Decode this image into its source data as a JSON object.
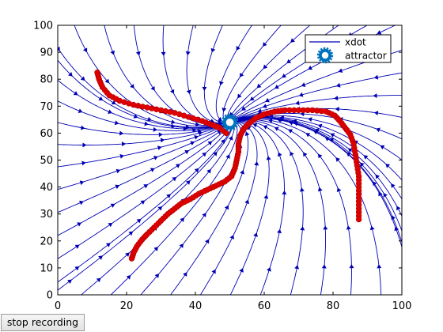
{
  "button": {
    "label": "stop recording"
  },
  "colors": {
    "streamline": "#0000b4",
    "trajectory": "#e00000",
    "trajectory_edge": "#b00000",
    "attractor": "#0072bd",
    "axes": "#000000",
    "background": "#ffffff"
  },
  "legend": {
    "position": "top-right",
    "items": [
      {
        "label": "xdot",
        "marker": "line"
      },
      {
        "label": "attractor",
        "marker": "gear-icon"
      }
    ]
  },
  "chart_data": {
    "type": "scatter",
    "xlim": [
      0,
      100
    ],
    "ylim": [
      0,
      100
    ],
    "xticks": [
      "0",
      "20",
      "40",
      "60",
      "80",
      "100"
    ],
    "yticks": [
      "0",
      "10",
      "20",
      "30",
      "40",
      "50",
      "60",
      "70",
      "80",
      "90",
      "100"
    ],
    "attractor": {
      "x": 50,
      "y": 64
    },
    "streamlines": "converging flow field toward the attractor",
    "trajectories": [
      {
        "points": [
          [
            11.5,
            82.5
          ],
          [
            12,
            80
          ],
          [
            13,
            77
          ],
          [
            15,
            74
          ],
          [
            18,
            72
          ],
          [
            22,
            70.5
          ],
          [
            26,
            69.5
          ],
          [
            30,
            68.5
          ],
          [
            34,
            67.5
          ],
          [
            38,
            66
          ],
          [
            42,
            64.5
          ],
          [
            45,
            63
          ],
          [
            47,
            62
          ],
          [
            49,
            60
          ]
        ]
      },
      {
        "points": [
          [
            21.5,
            13.5
          ],
          [
            22,
            15.5
          ],
          [
            23,
            18
          ],
          [
            24.5,
            20.5
          ],
          [
            26,
            22.5
          ],
          [
            28,
            25
          ],
          [
            30,
            27.5
          ],
          [
            32,
            30
          ],
          [
            34,
            32
          ],
          [
            36,
            34
          ],
          [
            38.5,
            35.5
          ],
          [
            41,
            37.5
          ],
          [
            43.5,
            39
          ],
          [
            46,
            40.5
          ],
          [
            48.5,
            42
          ],
          [
            50.5,
            44
          ],
          [
            51.5,
            47
          ],
          [
            52,
            50
          ],
          [
            52.5,
            53
          ],
          [
            52.5,
            56
          ],
          [
            53,
            59
          ],
          [
            54,
            61.5
          ],
          [
            55.5,
            63.5
          ],
          [
            57.5,
            65.5
          ],
          [
            60,
            67
          ],
          [
            63,
            68
          ],
          [
            66,
            68.5
          ],
          [
            70,
            68.5
          ],
          [
            74,
            68.5
          ],
          [
            78,
            68
          ],
          [
            80.5,
            66.5
          ],
          [
            82,
            64.5
          ],
          [
            83.5,
            62
          ],
          [
            85,
            59.5
          ],
          [
            86,
            56
          ],
          [
            86.5,
            52
          ],
          [
            87,
            48
          ],
          [
            87.5,
            44
          ],
          [
            87.5,
            40
          ],
          [
            87.5,
            36
          ],
          [
            87.5,
            32
          ],
          [
            87.5,
            28
          ]
        ]
      }
    ]
  }
}
